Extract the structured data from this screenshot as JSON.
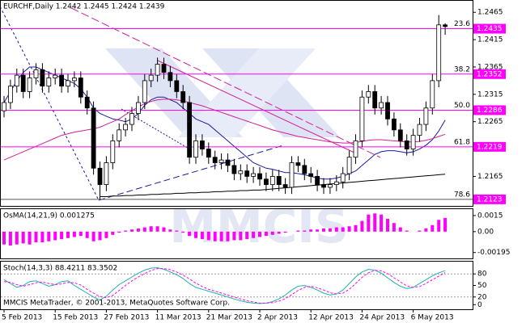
{
  "watermark": "MMCIS",
  "footer": "MMCIS MetaTrader, © 2001-2013, MetaQuotes Software Corp.",
  "chart_data": [
    {
      "type": "candlestick",
      "title": "EURCHF,Daily 1.2442 1.2445 1.2424 1.2439",
      "categories": [
        "5 Feb 2013",
        null,
        null,
        null,
        null,
        null,
        null,
        null,
        "15 Feb 2013",
        null,
        null,
        null,
        null,
        null,
        null,
        null,
        "27 Feb 2013",
        null,
        null,
        null,
        null,
        null,
        null,
        null,
        "11 Mar 2013",
        null,
        null,
        null,
        null,
        null,
        null,
        null,
        "21 Mar 2013",
        null,
        null,
        null,
        null,
        null,
        null,
        null,
        "2 Apr 2013",
        null,
        null,
        null,
        null,
        null,
        null,
        null,
        "12 Apr 2013",
        null,
        null,
        null,
        null,
        null,
        null,
        null,
        "24 Apr 2013",
        null,
        null,
        null,
        null,
        null,
        null,
        null,
        "6 May 2013",
        null,
        null,
        null,
        null,
        null
      ],
      "open": [
        1.2285,
        1.23,
        1.233,
        1.235,
        1.232,
        1.2345,
        1.236,
        1.233,
        1.2345,
        1.235,
        1.233,
        1.234,
        1.2345,
        1.231,
        1.229,
        1.218,
        1.215,
        1.219,
        1.223,
        1.225,
        1.226,
        1.228,
        1.23,
        1.234,
        1.235,
        1.237,
        1.2355,
        1.234,
        1.232,
        1.23,
        1.22,
        1.223,
        1.2215,
        1.22,
        1.219,
        1.2195,
        1.2185,
        1.217,
        1.2175,
        1.2165,
        1.217,
        1.216,
        1.215,
        1.2165,
        1.215,
        1.2145,
        1.219,
        1.2185,
        1.217,
        1.2165,
        1.215,
        1.2145,
        1.215,
        1.2155,
        1.217,
        1.22,
        1.223,
        1.231,
        1.232,
        1.229,
        1.23,
        1.227,
        1.225,
        1.223,
        1.2215,
        1.224,
        1.226,
        1.229,
        1.234,
        1.2442
      ],
      "high": [
        1.2312,
        1.2342,
        1.2362,
        1.2362,
        1.2357,
        1.2372,
        1.2372,
        1.2357,
        1.2362,
        1.2362,
        1.2352,
        1.2357,
        1.2357,
        1.2322,
        1.2302,
        1.2192,
        1.2202,
        1.2242,
        1.2262,
        1.2272,
        1.2292,
        1.2312,
        1.2352,
        1.2362,
        1.2382,
        1.2382,
        1.2367,
        1.2352,
        1.2332,
        1.2312,
        1.2242,
        1.2242,
        1.2227,
        1.2212,
        1.2207,
        1.2207,
        1.2197,
        1.2187,
        1.2187,
        1.2182,
        1.2182,
        1.2172,
        1.2177,
        1.2177,
        1.2162,
        1.2202,
        1.2202,
        1.2197,
        1.2182,
        1.2177,
        1.2162,
        1.2162,
        1.2167,
        1.2182,
        1.2212,
        1.2242,
        1.2322,
        1.2332,
        1.2332,
        1.2312,
        1.2312,
        1.2282,
        1.2262,
        1.2242,
        1.2252,
        1.2272,
        1.2302,
        1.2352,
        1.246,
        1.2445
      ],
      "low": [
        1.2273,
        1.2288,
        1.2318,
        1.2308,
        1.2308,
        1.2333,
        1.2318,
        1.2318,
        1.2333,
        1.2318,
        1.2318,
        1.2328,
        1.2298,
        1.2278,
        1.2168,
        1.2123,
        1.2138,
        1.2178,
        1.2218,
        1.2238,
        1.2248,
        1.2268,
        1.2288,
        1.2328,
        1.2338,
        1.2343,
        1.2328,
        1.2308,
        1.2288,
        1.2188,
        1.2188,
        1.2203,
        1.2188,
        1.2178,
        1.2178,
        1.2173,
        1.2158,
        1.2158,
        1.2153,
        1.2153,
        1.2148,
        1.2138,
        1.2138,
        1.2138,
        1.2133,
        1.2133,
        1.2173,
        1.2158,
        1.2153,
        1.2138,
        1.2133,
        1.2133,
        1.2138,
        1.2143,
        1.2158,
        1.2188,
        1.2218,
        1.2298,
        1.2278,
        1.2278,
        1.2258,
        1.2238,
        1.2218,
        1.2203,
        1.2203,
        1.2228,
        1.2248,
        1.2278,
        1.2328,
        1.2424
      ],
      "close": [
        1.23,
        1.233,
        1.235,
        1.232,
        1.2345,
        1.236,
        1.233,
        1.2345,
        1.235,
        1.233,
        1.234,
        1.2345,
        1.231,
        1.229,
        1.218,
        1.215,
        1.219,
        1.223,
        1.225,
        1.226,
        1.228,
        1.23,
        1.234,
        1.235,
        1.237,
        1.2355,
        1.234,
        1.232,
        1.23,
        1.22,
        1.223,
        1.2215,
        1.22,
        1.219,
        1.2195,
        1.2185,
        1.217,
        1.2175,
        1.2165,
        1.217,
        1.216,
        1.215,
        1.2165,
        1.215,
        1.2145,
        1.219,
        1.2185,
        1.217,
        1.2165,
        1.215,
        1.2145,
        1.215,
        1.2155,
        1.217,
        1.22,
        1.223,
        1.231,
        1.232,
        1.229,
        1.23,
        1.227,
        1.225,
        1.223,
        1.2215,
        1.224,
        1.226,
        1.229,
        1.234,
        1.2442,
        1.2439
      ],
      "candle_color": "#000000",
      "up_body_color": "#ffffff",
      "down_body_color": "#000000",
      "series": [
        {
          "color": "#1a1aa0",
          "values": [
            1.23,
            1.232,
            1.234,
            1.2355,
            1.2365,
            1.2365,
            1.236,
            1.2355,
            1.235,
            1.2345,
            1.234,
            1.2335,
            1.2325,
            1.231,
            1.229,
            1.228,
            1.2275,
            1.227,
            1.2268,
            1.2265,
            1.227,
            1.228,
            1.2295,
            1.2305,
            1.231,
            1.231,
            1.2305,
            1.23,
            1.229,
            1.228,
            1.227,
            1.2265,
            1.226,
            1.225,
            1.224,
            1.223,
            1.222,
            1.221,
            1.22,
            1.219,
            1.2185,
            1.218,
            1.2178,
            1.2175,
            1.2172,
            1.2172,
            1.217,
            1.2168,
            1.2165,
            1.2162,
            1.216,
            1.216,
            1.2162,
            1.2165,
            1.217,
            1.2175,
            1.2185,
            1.2195,
            1.2205,
            1.221,
            1.2212,
            1.2212,
            1.221,
            1.2208,
            1.221,
            1.2215,
            1.2222,
            1.2232,
            1.2248,
            1.2268
          ]
        },
        {
          "color": "#d0209a",
          "values": [
            1.2195,
            1.22,
            1.2205,
            1.221,
            1.2215,
            1.222,
            1.2225,
            1.223,
            1.2235,
            1.224,
            1.2243,
            1.2246,
            1.2248,
            1.225,
            1.2252,
            1.2255,
            1.226,
            1.2265,
            1.227,
            1.2278,
            1.2285,
            1.2292,
            1.2298,
            1.2302,
            1.2305,
            1.2306,
            1.2306,
            1.2305,
            1.2303,
            1.23,
            1.2297,
            1.2294,
            1.229,
            1.2286,
            1.2282,
            1.2278,
            1.2274,
            1.227,
            1.2266,
            1.2262,
            1.2258,
            1.2254,
            1.225,
            1.2247,
            1.2244,
            1.2241,
            1.2238,
            1.2236,
            1.2234,
            1.2232,
            1.223,
            1.2228,
            1.2227,
            1.2226,
            1.2226,
            1.2227,
            1.2229,
            1.2231,
            1.2232,
            1.2232,
            1.2231,
            1.223,
            1.2229,
            1.2228,
            1.2228,
            1.2229,
            1.2231,
            1.2234,
            1.2238,
            1.2242
          ]
        },
        {
          "color": "#000000",
          "values": [
            null,
            null,
            null,
            null,
            null,
            null,
            null,
            null,
            null,
            null,
            null,
            null,
            null,
            null,
            null,
            1.2128,
            1.2128,
            1.2129,
            1.2129,
            1.213,
            1.213,
            1.2131,
            1.2131,
            1.2132,
            1.2132,
            1.2133,
            1.2133,
            1.2134,
            1.2134,
            1.2135,
            1.2135,
            1.2136,
            1.2136,
            1.2137,
            1.2137,
            1.2138,
            1.2138,
            1.2139,
            1.2139,
            1.214,
            1.214,
            1.2141,
            1.2142,
            1.2143,
            1.2144,
            1.2145,
            1.2146,
            1.2147,
            1.2148,
            1.2149,
            1.215,
            1.2151,
            1.2152,
            1.2153,
            1.2154,
            1.2155,
            1.2156,
            1.2157,
            1.2158,
            1.2159,
            1.216,
            1.2161,
            1.2162,
            1.2163,
            1.2164,
            1.2165,
            1.2166,
            1.2167,
            1.2168,
            1.2169
          ]
        }
      ],
      "levels": [
        {
          "label": "23.6",
          "value": 1.2435,
          "color": "#ff00ff"
        },
        {
          "label": "38.2",
          "value": 1.2352,
          "color": "#ff00ff"
        },
        {
          "label": "50.0",
          "value": 1.2286,
          "color": "#ff00ff"
        },
        {
          "label": "61.8",
          "value": 1.2219,
          "color": "#ff00ff"
        },
        {
          "label": "78.6",
          "value": 1.2123,
          "color": "#555555"
        }
      ],
      "level_box_color": "#ff00ff",
      "ylim": [
        1.2111,
        1.2486
      ],
      "yticks": [
        1.2465,
        1.2415,
        1.2365,
        1.2315,
        1.2265,
        1.2165
      ],
      "grid": false
    },
    {
      "type": "histogram",
      "title": "OsMA(14,21,9) 0.001275",
      "color": "#ff00ff",
      "values": [
        -0.0012,
        -0.0013,
        -0.0012,
        -0.0011,
        -0.0012,
        -0.001,
        -0.001,
        -0.0009,
        -0.0008,
        -0.0007,
        -0.0006,
        -0.0005,
        -0.0004,
        -0.0006,
        -0.0009,
        -0.0008,
        -0.0006,
        -0.0003,
        -0.0001,
        0.0001,
        0.0002,
        0.0003,
        0.0004,
        0.0005,
        0.0005,
        0.0004,
        0.0002,
        0.0001,
        -0.0001,
        -0.0004,
        -0.0006,
        -0.0007,
        -0.0008,
        -0.0009,
        -0.0009,
        -0.0009,
        -0.0008,
        -0.0008,
        -0.0007,
        -0.0006,
        -0.0005,
        -0.0004,
        -0.0003,
        -0.0002,
        -0.0001,
        0.0,
        0.0001,
        0.0001,
        0.0002,
        0.0002,
        0.0003,
        0.0003,
        0.0004,
        0.0004,
        0.0005,
        0.0006,
        0.001,
        0.0016,
        0.0017,
        0.0016,
        0.0012,
        0.0008,
        0.0004,
        0.0001,
        0.0,
        0.0001,
        0.0003,
        0.0006,
        0.0011,
        0.001275
      ],
      "ylim": [
        -0.0025,
        0.0021
      ],
      "yticks": [
        0.0015,
        {
          "value": 0,
          "label": "0.00"
        },
        -0.00195
      ]
    },
    {
      "type": "line",
      "title": "Stoch(14,3,3) 88.4211 83.3502",
      "series": [
        {
          "color": "#20b2aa",
          "values": [
            65,
            55,
            45,
            50,
            60,
            62,
            55,
            48,
            52,
            60,
            62,
            50,
            40,
            30,
            20,
            12,
            22,
            38,
            52,
            62,
            72,
            82,
            90,
            95,
            96,
            92,
            85,
            78,
            68,
            55,
            45,
            40,
            35,
            30,
            25,
            20,
            15,
            10,
            6,
            4,
            3,
            4,
            8,
            15,
            25,
            38,
            48,
            50,
            45,
            38,
            30,
            25,
            28,
            38,
            55,
            72,
            85,
            92,
            90,
            82,
            70,
            58,
            48,
            42,
            45,
            55,
            65,
            75,
            83,
            88.4211
          ]
        },
        {
          "color": "#ff00ff",
          "dashed": true,
          "values": [
            60,
            58,
            52,
            48,
            52,
            57,
            59,
            55,
            52,
            54,
            58,
            57,
            51,
            40,
            30,
            21,
            18,
            24,
            37,
            50,
            62,
            72,
            81,
            89,
            94,
            94,
            91,
            85,
            77,
            67,
            56,
            47,
            40,
            35,
            30,
            25,
            20,
            15,
            10,
            7,
            4,
            4,
            5,
            9,
            16,
            26,
            37,
            45,
            48,
            44,
            38,
            31,
            28,
            30,
            40,
            55,
            71,
            83,
            89,
            88,
            81,
            70,
            59,
            49,
            45,
            47,
            55,
            65,
            74,
            83.3502
          ]
        }
      ],
      "levels": [
        20,
        80
      ],
      "ylim": [
        -12,
        112
      ],
      "yticks": [
        80,
        50,
        20,
        0
      ]
    }
  ]
}
